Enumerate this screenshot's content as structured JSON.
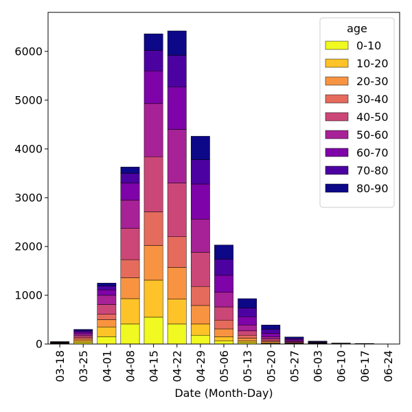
{
  "chart_data": {
    "type": "bar",
    "stacked": true,
    "xlabel": "Date (Month-Day)",
    "ylabel": "",
    "ylim": [
      0,
      6800
    ],
    "yticks": [
      0,
      1000,
      2000,
      3000,
      4000,
      5000,
      6000
    ],
    "grid": false,
    "legend_position": "top-right",
    "legend_title": "age",
    "categories": [
      "03-18",
      "03-25",
      "04-01",
      "04-08",
      "04-15",
      "04-22",
      "04-29",
      "05-06",
      "05-13",
      "05-20",
      "05-27",
      "06-03",
      "06-10",
      "06-17",
      "06-24"
    ],
    "series": [
      {
        "name": "0-10",
        "color": "#f0f921",
        "values": [
          2,
          30,
          150,
          410,
          550,
          410,
          180,
          60,
          30,
          10,
          5,
          2,
          1,
          1,
          0
        ]
      },
      {
        "name": "10-20",
        "color": "#fdc328",
        "values": [
          3,
          35,
          200,
          520,
          760,
          510,
          230,
          90,
          35,
          15,
          6,
          3,
          1,
          1,
          0
        ]
      },
      {
        "name": "20-30",
        "color": "#f89441",
        "values": [
          5,
          35,
          150,
          430,
          710,
          650,
          380,
          160,
          55,
          20,
          10,
          4,
          2,
          1,
          0
        ]
      },
      {
        "name": "30-40",
        "color": "#e56b5d",
        "values": [
          5,
          30,
          110,
          370,
          690,
          630,
          390,
          180,
          60,
          25,
          10,
          5,
          2,
          1,
          0
        ]
      },
      {
        "name": "40-50",
        "color": "#cb4778",
        "values": [
          8,
          40,
          200,
          640,
          1130,
          1100,
          700,
          270,
          90,
          35,
          15,
          6,
          2,
          1,
          0
        ]
      },
      {
        "name": "50-60",
        "color": "#a72197",
        "values": [
          8,
          40,
          190,
          580,
          1090,
          1100,
          680,
          300,
          120,
          45,
          20,
          8,
          2,
          1,
          0
        ]
      },
      {
        "name": "60-70",
        "color": "#7e03a8",
        "values": [
          8,
          35,
          110,
          350,
          670,
          870,
          720,
          350,
          170,
          70,
          25,
          10,
          3,
          2,
          0
        ]
      },
      {
        "name": "70-80",
        "color": "#4c02a1",
        "values": [
          6,
          30,
          80,
          200,
          420,
          650,
          500,
          330,
          180,
          80,
          25,
          10,
          3,
          2,
          0
        ]
      },
      {
        "name": "80-90",
        "color": "#0d0887",
        "values": [
          5,
          25,
          60,
          130,
          340,
          500,
          480,
          290,
          190,
          90,
          29,
          12,
          4,
          2,
          0
        ]
      }
    ]
  }
}
